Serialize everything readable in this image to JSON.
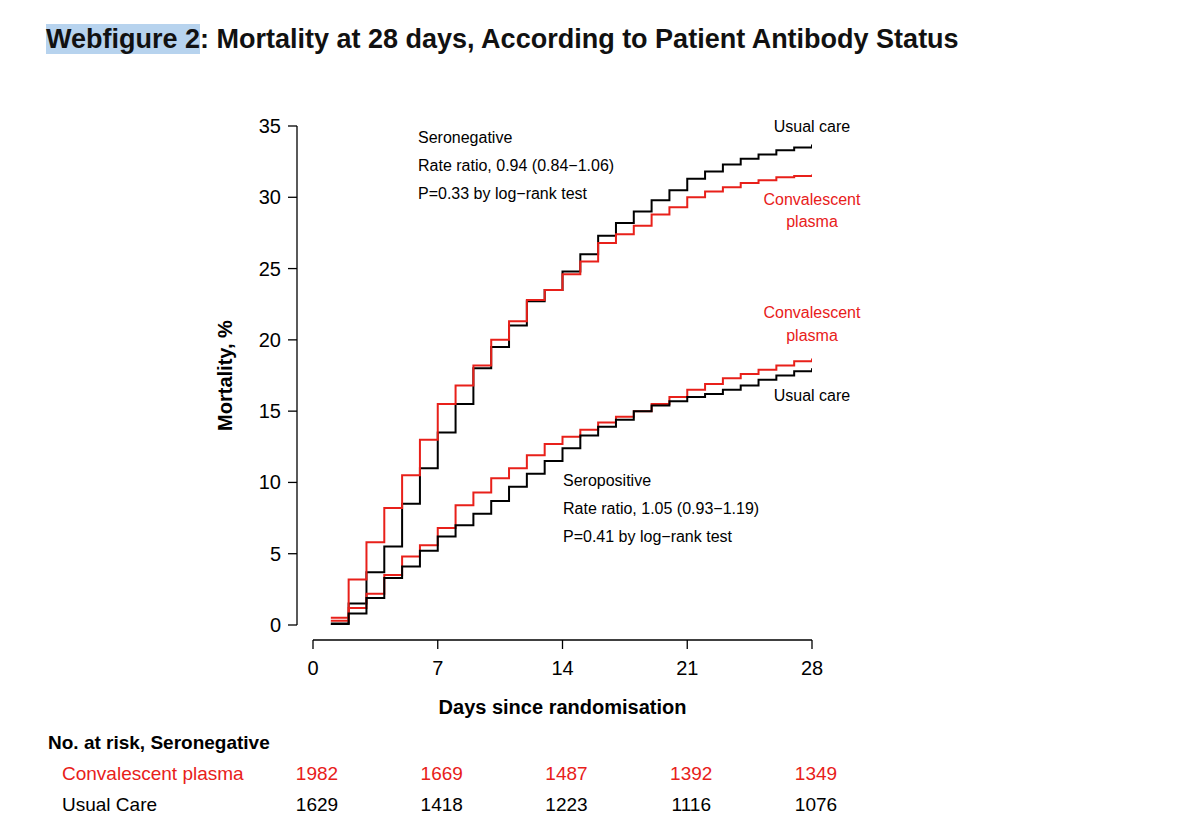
{
  "chart_data": {
    "type": "step",
    "title": "Webfigure 2: Mortality at 28 days, According to Patient Antibody Status",
    "x_label": "Days since randomisation",
    "y_label": "Mortality, %",
    "xlim": [
      0,
      28
    ],
    "xticks": [
      0,
      7,
      14,
      21,
      28
    ],
    "ylim": [
      0,
      35
    ],
    "yticks": [
      0,
      5,
      10,
      15,
      20,
      25,
      30,
      35
    ],
    "grid": false,
    "x": [
      1,
      2,
      3,
      4,
      5,
      6,
      7,
      8,
      9,
      10,
      11,
      12,
      13,
      14,
      15,
      16,
      17,
      18,
      19,
      20,
      21,
      22,
      23,
      24,
      25,
      26,
      27,
      28
    ],
    "series": [
      {
        "name": "Usual care",
        "color": "#000000",
        "values": [
          0,
          1.5,
          3.7,
          5.5,
          8.5,
          11,
          13.5,
          15.5,
          18,
          19.5,
          21,
          22.7,
          23.5,
          24.8,
          26,
          27.3,
          28.2,
          29,
          29.8,
          30.5,
          31.3,
          31.8,
          32.3,
          32.7,
          33,
          33.3,
          33.5,
          33.7
        ]
      },
      {
        "name": "Convalescent plasma",
        "color": "#e8201a",
        "values": [
          0.5,
          3.2,
          5.8,
          8.2,
          10.5,
          13,
          15.5,
          16.8,
          18.2,
          20,
          21.3,
          22.8,
          23.5,
          24.6,
          25.5,
          26.8,
          27.4,
          28,
          28.8,
          29.3,
          30,
          30.4,
          30.7,
          31,
          31.2,
          31.4,
          31.5,
          31.6
        ]
      },
      {
        "name": "Convalescent plasma",
        "color": "#e8201a",
        "values": [
          0.3,
          1.2,
          2.2,
          3.5,
          4.8,
          5.6,
          6.8,
          8.4,
          9.3,
          10.3,
          11,
          11.9,
          12.7,
          13.2,
          13.7,
          14.2,
          14.6,
          15,
          15.5,
          16,
          16.5,
          16.9,
          17.3,
          17.6,
          17.9,
          18.2,
          18.5,
          18.7
        ]
      },
      {
        "name": "Usual care",
        "color": "#000000",
        "values": [
          0.1,
          0.8,
          1.9,
          3.3,
          4.1,
          5.2,
          6.2,
          7,
          7.8,
          8.7,
          9.7,
          10.6,
          11.5,
          12.4,
          13.3,
          13.9,
          14.4,
          15,
          15.4,
          15.7,
          16,
          16.2,
          16.5,
          16.8,
          17.2,
          17.5,
          17.8,
          18
        ]
      }
    ],
    "annotations": [
      [
        "Seronegative",
        "Rate ratio, 0.94 (0.84−1.06)",
        "P=0.33 by log−rank test"
      ],
      [
        "Seropositive",
        "Rate ratio, 1.05 (0.93−1.19)",
        "P=0.41 by log−rank test"
      ]
    ],
    "at_risk": {
      "title": "No. at risk, Seronegative",
      "x": [
        0,
        7,
        14,
        21,
        28
      ],
      "rows": [
        {
          "name": "Convalescent plasma",
          "color": "#e8201a",
          "values": [
            1982,
            1669,
            1487,
            1392,
            1349
          ]
        },
        {
          "name": "Usual Care",
          "color": "#000000",
          "values": [
            1629,
            1418,
            1223,
            1116,
            1076
          ]
        }
      ]
    }
  }
}
